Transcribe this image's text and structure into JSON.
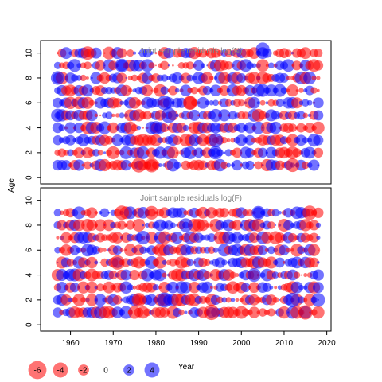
{
  "figure": {
    "ylabel": "Age",
    "xlabel": "Year"
  },
  "legend": {
    "values": [
      -6,
      -4,
      -2,
      0,
      2,
      4
    ],
    "labels": [
      "-6",
      "-4",
      "-2",
      "0",
      "2",
      "4"
    ]
  },
  "colors": {
    "positive": "#0000ff",
    "negative": "#ff0000",
    "fill_alpha": 0.55
  },
  "chart_data": [
    {
      "type": "scatter",
      "subtype": "bubble-residuals",
      "title": "Joint sample residuals log(N)",
      "xlim": [
        1953,
        2021
      ],
      "ylim": [
        -0.5,
        11
      ],
      "xticks": [
        1960,
        1970,
        1980,
        1990,
        2000,
        2010,
        2020
      ],
      "yticks": [
        0,
        2,
        4,
        6,
        8,
        10
      ],
      "years": [
        1957,
        2018
      ],
      "ages": [
        1,
        2,
        3,
        4,
        5,
        6,
        7,
        8,
        9,
        10
      ],
      "residual_range": [
        -4,
        4
      ],
      "seed": 2024,
      "overlay_spots": [
        {
          "year": 2005,
          "age": 10.3,
          "value": 3.6
        },
        {
          "year": 1964,
          "age": 10,
          "value": -3.5
        },
        {
          "year": 1957,
          "age": 8,
          "value": 3.6
        },
        {
          "year": 1957,
          "age": 5,
          "value": 3.4
        },
        {
          "year": 1982,
          "age": 6,
          "value": 4.2
        },
        {
          "year": 1983,
          "age": 5,
          "value": 4.6
        },
        {
          "year": 1988,
          "age": 6,
          "value": -3.8
        },
        {
          "year": 1994,
          "age": 3,
          "value": 3.9
        },
        {
          "year": 1994,
          "age": 2,
          "value": 3.5
        },
        {
          "year": 1976,
          "age": 1,
          "value": -4.2
        },
        {
          "year": 1979,
          "age": 1,
          "value": -4.0
        },
        {
          "year": 2012,
          "age": 1,
          "value": -3.6
        },
        {
          "year": 1980,
          "age": 4,
          "value": 3.4
        },
        {
          "year": 1972,
          "age": 9,
          "value": 3.6
        }
      ]
    },
    {
      "type": "scatter",
      "subtype": "bubble-residuals",
      "title": "Joint sample residuals log(F)",
      "xlim": [
        1953,
        2021
      ],
      "ylim": [
        -0.5,
        11
      ],
      "xticks": [
        1960,
        1970,
        1980,
        1990,
        2000,
        2010,
        2020
      ],
      "yticks": [
        0,
        2,
        4,
        6,
        8,
        10
      ],
      "years": [
        1957,
        2018
      ],
      "ages": [
        1,
        2,
        3,
        4,
        5,
        6,
        7,
        8,
        9
      ],
      "residual_range": [
        -4,
        4
      ],
      "seed": 7331,
      "overlay_spots": [
        {
          "year": 1993,
          "age": 1,
          "value": -4.6
        },
        {
          "year": 1972,
          "age": 9,
          "value": -4.0
        },
        {
          "year": 1979,
          "age": 9,
          "value": -3.6
        },
        {
          "year": 2016,
          "age": 9,
          "value": -4.0
        },
        {
          "year": 2004,
          "age": 9,
          "value": 3.6
        },
        {
          "year": 1987,
          "age": 8,
          "value": 3.6
        },
        {
          "year": 2003,
          "age": 4,
          "value": 3.6
        },
        {
          "year": 1982,
          "age": 2,
          "value": 4.4
        },
        {
          "year": 1977,
          "age": 7,
          "value": 3.6
        },
        {
          "year": 2012,
          "age": 2,
          "value": 4.0
        },
        {
          "year": 2015,
          "age": 1,
          "value": -4.0
        },
        {
          "year": 1971,
          "age": 5,
          "value": -4.0
        },
        {
          "year": 1976,
          "age": 2,
          "value": -3.8
        },
        {
          "year": 2018,
          "age": 2,
          "value": 3.6
        }
      ]
    }
  ]
}
